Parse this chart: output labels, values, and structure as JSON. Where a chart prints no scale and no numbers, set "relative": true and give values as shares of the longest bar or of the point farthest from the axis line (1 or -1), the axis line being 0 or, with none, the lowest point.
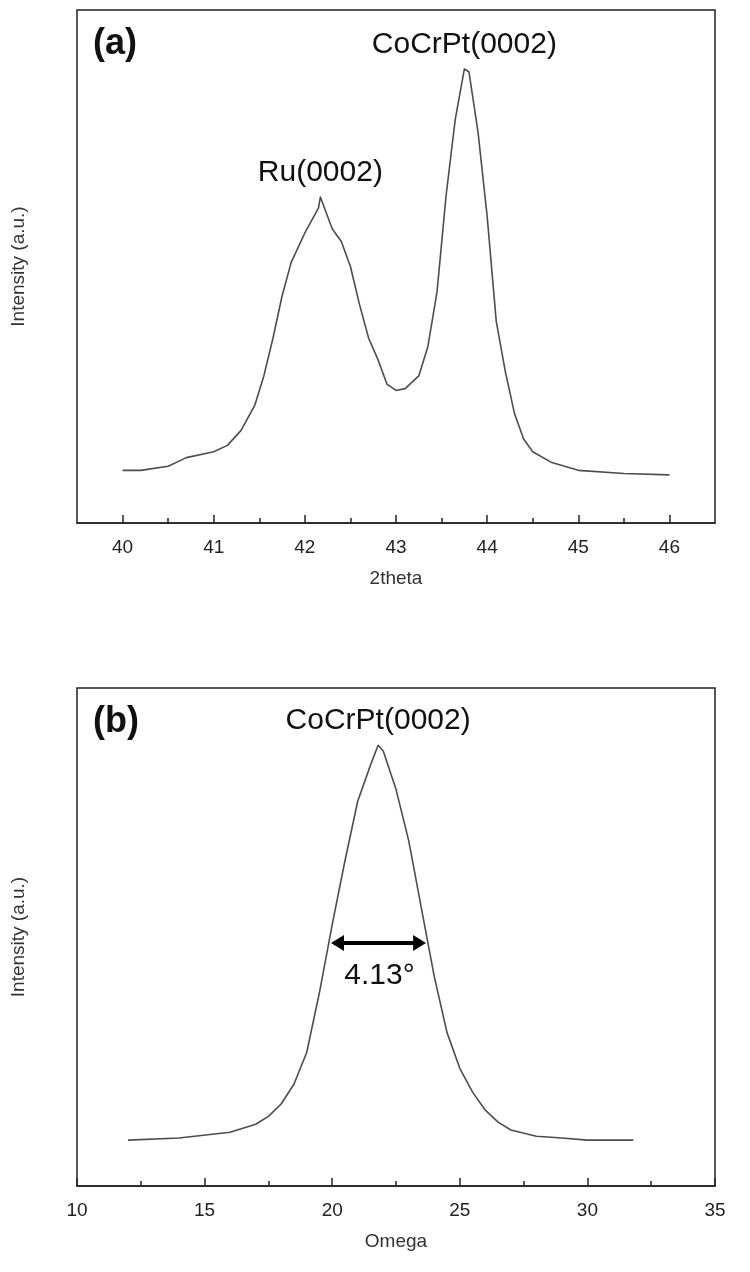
{
  "chart_data": [
    {
      "type": "line",
      "title": "(a)",
      "xlabel": "2theta",
      "ylabel": "Intensity (a.u.)",
      "relative": true,
      "tick_labels": "x",
      "grid": false,
      "marker": "none",
      "line_style": "solid",
      "xlim": [
        39.5,
        46.5
      ],
      "xticks": [
        40,
        41,
        42,
        43,
        44,
        45,
        46
      ],
      "annotations": [
        {
          "text": "Ru(0002)",
          "x": 42.17,
          "y": 0.718
        },
        {
          "text": "CoCrPt(0002)",
          "x": 43.75,
          "y": 1
        }
      ],
      "series": [
        {
          "color": "#4d4d4d",
          "x": [
            40,
            40.2,
            40.5,
            40.7,
            41,
            41.15,
            41.3,
            41.45,
            41.55,
            41.65,
            41.75,
            41.85,
            42,
            42.15,
            42.17,
            42.3,
            42.4,
            42.5,
            42.6,
            42.7,
            42.8,
            42.9,
            43,
            43.1,
            43.25,
            43.35,
            43.45,
            43.55,
            43.65,
            43.75,
            43.8,
            43.9,
            44,
            44.1,
            44.2,
            44.3,
            44.4,
            44.5,
            44.7,
            45,
            45.5,
            46
          ],
          "values": [
            0.116,
            0.116,
            0.125,
            0.144,
            0.157,
            0.171,
            0.204,
            0.259,
            0.324,
            0.407,
            0.5,
            0.574,
            0.639,
            0.694,
            0.718,
            0.648,
            0.62,
            0.565,
            0.481,
            0.407,
            0.361,
            0.306,
            0.292,
            0.296,
            0.324,
            0.389,
            0.509,
            0.722,
            0.889,
            1,
            0.994,
            0.861,
            0.676,
            0.444,
            0.333,
            0.241,
            0.185,
            0.157,
            0.134,
            0.116,
            0.109,
            0.106
          ]
        }
      ]
    },
    {
      "type": "line",
      "title": "(b)",
      "xlabel": "Omega",
      "ylabel": "Intensity (a.u.)",
      "relative": true,
      "tick_labels": "x",
      "grid": false,
      "marker": "none",
      "line_style": "solid",
      "xlim": [
        10,
        35
      ],
      "xticks": [
        10,
        15,
        20,
        25,
        30,
        35
      ],
      "annotations": [
        {
          "text": "CoCrPt(0002)",
          "x": 21.8,
          "y": 1
        },
        "4.13°"
      ],
      "series": [
        {
          "color": "#4d4d4d",
          "x": [
            12,
            14,
            16,
            17,
            17.5,
            18,
            18.5,
            19,
            19.5,
            20,
            20.5,
            21,
            21.5,
            21.8,
            22,
            22.5,
            23,
            23.5,
            24,
            24.5,
            25,
            25.5,
            26,
            26.5,
            27,
            28,
            29,
            30,
            31.8
          ],
          "values": [
            0.104,
            0.109,
            0.122,
            0.14,
            0.158,
            0.186,
            0.231,
            0.303,
            0.439,
            0.593,
            0.738,
            0.873,
            0.955,
            1,
            0.987,
            0.9,
            0.783,
            0.629,
            0.475,
            0.348,
            0.267,
            0.213,
            0.172,
            0.145,
            0.127,
            0.113,
            0.109,
            0.104,
            0.104
          ]
        }
      ]
    }
  ]
}
